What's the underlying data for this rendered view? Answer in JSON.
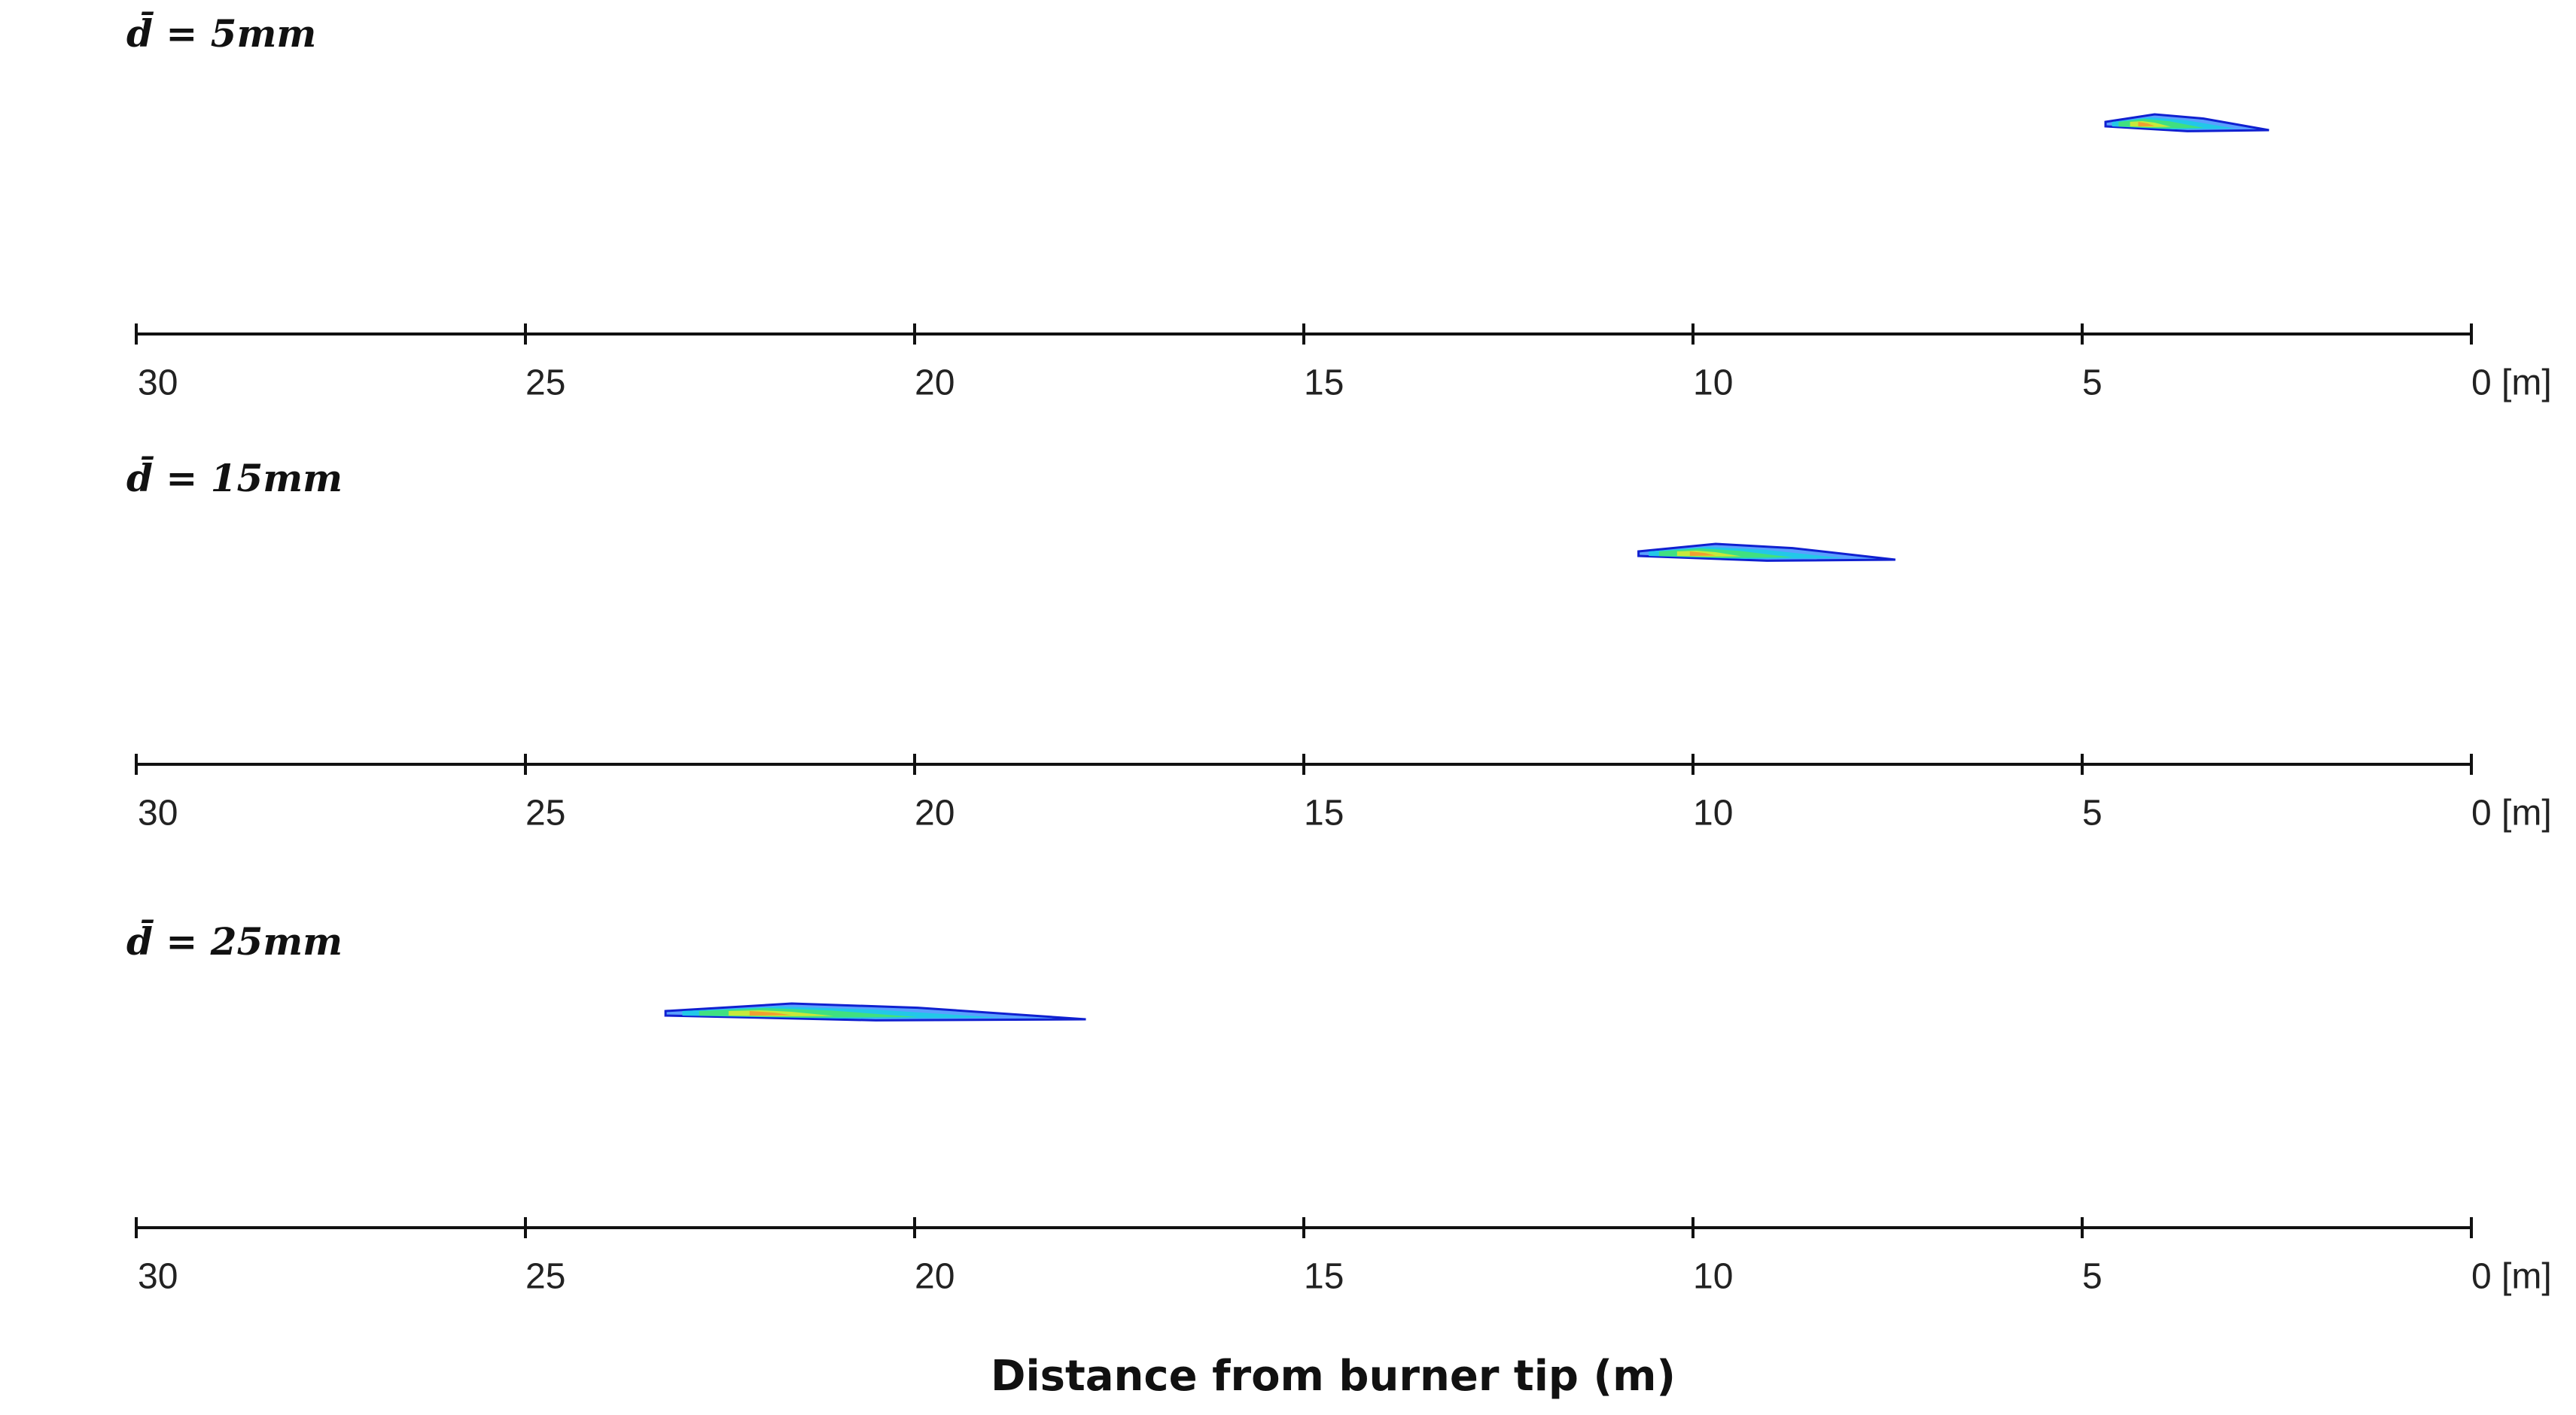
{
  "chart_data": [
    {
      "type": "plume",
      "title": "d̄ = 5mm",
      "xlim": [
        30,
        0
      ],
      "xticks": [
        30,
        25,
        20,
        15,
        10,
        5,
        {
          "value": 0,
          "label": "0 [m]"
        }
      ],
      "plume": [
        4.7,
        2.6
      ]
    },
    {
      "type": "plume",
      "title": "d̄ = 15mm",
      "xlim": [
        30,
        0
      ],
      "xticks": [
        30,
        25,
        20,
        15,
        10,
        5,
        {
          "value": 0,
          "label": "0 [m]"
        }
      ],
      "plume": [
        10.7,
        7.4
      ]
    },
    {
      "type": "plume",
      "title": "d̄ = 25mm",
      "xlim": [
        30,
        0
      ],
      "xticks": [
        30,
        25,
        20,
        15,
        10,
        5,
        {
          "value": 0,
          "label": "0 [m]"
        }
      ],
      "plume": [
        23.2,
        17.8
      ]
    }
  ],
  "xlabel": "Distance from burner tip (m)"
}
